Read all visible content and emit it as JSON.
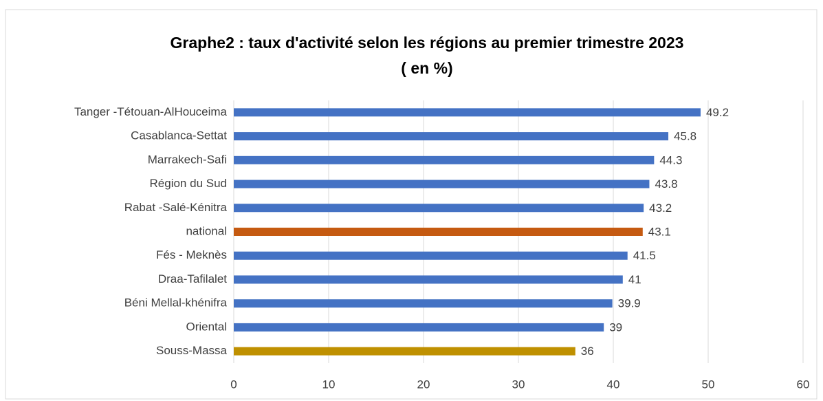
{
  "chart_data": {
    "type": "bar",
    "orientation": "horizontal",
    "title": "Graphe2 : taux d'activité selon les régions au premier trimestre 2023",
    "subtitle": "( en %)",
    "categories": [
      "Tanger -Tétouan-AlHouceima",
      "Casablanca-Settat",
      "Marrakech-Safi",
      "Région du Sud",
      "Rabat -Salé-Kénitra",
      "national",
      "Fés - Meknès",
      "Draa-Tafilalet",
      "Béni Mellal-khénifra",
      "Oriental",
      "Souss-Massa"
    ],
    "values": [
      49.2,
      45.8,
      44.3,
      43.8,
      43.2,
      43.1,
      41.5,
      41,
      39.9,
      39,
      36
    ],
    "colors": [
      "#4472c4",
      "#4472c4",
      "#4472c4",
      "#4472c4",
      "#4472c4",
      "#c55a11",
      "#4472c4",
      "#4472c4",
      "#4472c4",
      "#4472c4",
      "#bf9000"
    ],
    "xlim": [
      0,
      60
    ],
    "xticks": [
      0,
      10,
      20,
      30,
      40,
      50,
      60
    ],
    "grid": true
  }
}
